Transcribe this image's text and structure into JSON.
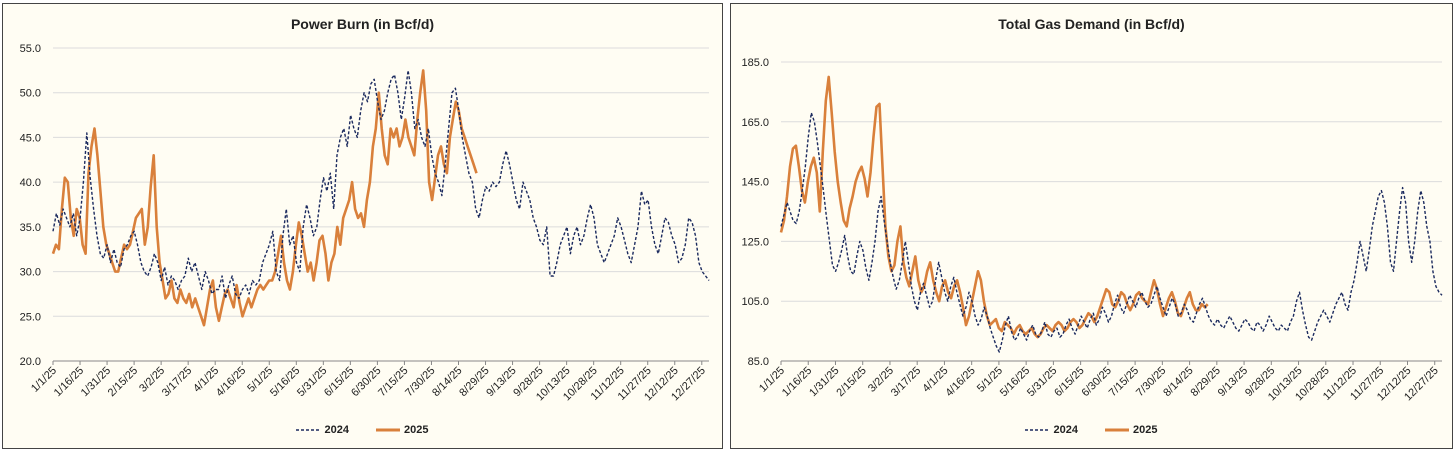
{
  "colors": {
    "s2024": "#1b2a5e",
    "s2025": "#d9803b",
    "grid": "#dcdcdc",
    "bg": "#fffdf3"
  },
  "chart_data": [
    {
      "type": "line",
      "title": "Power Burn (in Bcf/d)",
      "ylim": [
        20,
        55
      ],
      "yticks": [
        "20.0",
        "25.0",
        "30.0",
        "35.0",
        "40.0",
        "45.0",
        "50.0",
        "55.0"
      ],
      "xlabels": [
        "1/1/25",
        "1/16/25",
        "1/31/25",
        "2/15/25",
        "3/2/25",
        "3/17/25",
        "4/1/25",
        "4/16/25",
        "5/1/25",
        "5/16/25",
        "5/31/25",
        "6/15/25",
        "6/30/25",
        "7/15/25",
        "7/30/25",
        "8/14/25",
        "8/29/25",
        "9/13/25",
        "9/28/25",
        "10/13/25",
        "10/28/25",
        "11/12/25",
        "11/27/25",
        "12/12/25",
        "12/27/25"
      ],
      "series": [
        {
          "name": "2024",
          "values": [
            34.5,
            36.5,
            35.2,
            37,
            36,
            35,
            36.5,
            34,
            36,
            40,
            45.5,
            40.5,
            37,
            34,
            32,
            31.5,
            33,
            31,
            32.5,
            31,
            30.5,
            32.5,
            33,
            34,
            34.5,
            33,
            31,
            30,
            29.5,
            30.5,
            32,
            31,
            29,
            30.5,
            28.5,
            29.5,
            29,
            28,
            29,
            29.5,
            31.5,
            30,
            31,
            29.5,
            28,
            30,
            29,
            27.5,
            28,
            28,
            29.5,
            27,
            28.5,
            29.5,
            27.5,
            27,
            28,
            28.5,
            27.5,
            29,
            28.5,
            29,
            31,
            32,
            33,
            34.5,
            30,
            29,
            34,
            37,
            33,
            34,
            31,
            30,
            35,
            37.5,
            36,
            34,
            35,
            38,
            40.5,
            39,
            41,
            37,
            43,
            45,
            46,
            44,
            47.5,
            46,
            45,
            48,
            50,
            49,
            51,
            51.5,
            49,
            47,
            48,
            50,
            51.5,
            52,
            50,
            47,
            49.5,
            52.5,
            50,
            46,
            47,
            45,
            44,
            46,
            43,
            41,
            40,
            38.5,
            42,
            46,
            50,
            50.5,
            48,
            45,
            43,
            41,
            40,
            37,
            36,
            38,
            39.5,
            39,
            40,
            39.5,
            40,
            42,
            43.5,
            42,
            40,
            38,
            37,
            40,
            39,
            38,
            36,
            35,
            33.5,
            33,
            35,
            29.5,
            29.5,
            31,
            33,
            34,
            35,
            32,
            34,
            35,
            33,
            34,
            36,
            37.5,
            36,
            33,
            32,
            31,
            32,
            33,
            34,
            36,
            35,
            33.5,
            32,
            31,
            33,
            35,
            39,
            37.5,
            38,
            35,
            33,
            32,
            34,
            36,
            35.5,
            34,
            33,
            31,
            31.5,
            33,
            36,
            35.5,
            34,
            31,
            30,
            29.5,
            29
          ]
        },
        {
          "name": "2025",
          "values": [
            32,
            33,
            32.5,
            37,
            40.5,
            40,
            36,
            34,
            37,
            36,
            33,
            32,
            41,
            44,
            46,
            43,
            39,
            35,
            33,
            32,
            31,
            30,
            30,
            31.5,
            33,
            32.5,
            33,
            34.5,
            36,
            36.5,
            37,
            33,
            35,
            39.5,
            43,
            35,
            31,
            29,
            27,
            27.5,
            29,
            27,
            26.5,
            28,
            27,
            26.5,
            27.5,
            26,
            27,
            26,
            25,
            24,
            26,
            28,
            29,
            26,
            24.5,
            26,
            27.5,
            28,
            27,
            26,
            28.5,
            26.5,
            25,
            26,
            27,
            26,
            27,
            28,
            28.5,
            28,
            28.5,
            29,
            29,
            30,
            32,
            34,
            31,
            29,
            28,
            30,
            33,
            35.5,
            34,
            32,
            30,
            31,
            29,
            31,
            33.5,
            34,
            32,
            29,
            31,
            32,
            35,
            33,
            36,
            37,
            38,
            40,
            37,
            36,
            36.5,
            35,
            38,
            40,
            44,
            46,
            50,
            46,
            43,
            42,
            46,
            45,
            46,
            44,
            45,
            47,
            45,
            44,
            43,
            47,
            50,
            52.5,
            48,
            40,
            38,
            40.5,
            43,
            44,
            42,
            41,
            45,
            47,
            49,
            48,
            46,
            45,
            44,
            43,
            42,
            41
          ]
        }
      ]
    },
    {
      "type": "line",
      "title": "Total Gas Demand (in Bcf/d)",
      "ylim": [
        85,
        185
      ],
      "yticks": [
        "85.0",
        "105.0",
        "125.0",
        "145.0",
        "165.0",
        "185.0"
      ],
      "xlabels": [
        "1/1/25",
        "1/16/25",
        "1/31/25",
        "2/15/25",
        "3/2/25",
        "3/17/25",
        "4/1/25",
        "4/16/25",
        "5/1/25",
        "5/16/25",
        "5/31/25",
        "6/15/25",
        "6/30/25",
        "7/15/25",
        "7/30/25",
        "8/14/25",
        "8/29/25",
        "9/13/25",
        "9/28/25",
        "10/13/25",
        "10/28/25",
        "11/12/25",
        "11/27/25",
        "12/12/25",
        "12/27/25"
      ],
      "series": [
        {
          "name": "2024",
          "values": [
            130,
            134,
            138,
            135,
            132,
            131,
            135,
            142,
            150,
            160,
            168,
            165,
            158,
            150,
            142,
            133,
            125,
            117,
            115,
            118,
            122,
            127,
            120,
            115,
            114,
            120,
            125,
            122,
            116,
            112,
            118,
            125,
            135,
            140,
            132,
            125,
            118,
            113,
            109,
            112,
            118,
            125,
            118,
            110,
            105,
            102,
            108,
            111,
            107,
            103,
            105,
            112,
            118,
            113,
            108,
            105,
            110,
            113,
            108,
            104,
            100,
            103,
            108,
            105,
            100,
            97,
            99,
            103,
            100,
            96,
            93,
            90,
            88,
            92,
            97,
            100,
            95,
            92,
            93,
            96,
            94,
            92,
            95,
            97,
            94,
            93,
            95,
            98,
            94,
            93,
            95,
            96,
            93,
            94,
            97,
            99,
            96,
            94,
            97,
            100,
            98,
            96,
            99,
            101,
            97,
            99,
            103,
            101,
            98,
            100,
            104,
            107,
            103,
            101,
            104,
            107,
            105,
            103,
            106,
            108,
            105,
            103,
            104,
            107,
            110,
            106,
            103,
            100,
            103,
            106,
            104,
            100,
            101,
            104,
            102,
            99,
            98,
            101,
            104,
            106,
            103,
            100,
            98,
            97,
            99,
            97,
            96,
            98,
            100,
            98,
            96,
            95,
            97,
            99,
            98,
            96,
            95,
            98,
            97,
            95,
            97,
            100,
            98,
            96,
            95,
            97,
            96,
            95,
            98,
            100,
            105,
            108,
            102,
            97,
            93,
            92,
            95,
            98,
            100,
            102,
            100,
            98,
            101,
            104,
            106,
            108,
            104,
            102,
            108,
            112,
            118,
            125,
            120,
            115,
            122,
            130,
            135,
            140,
            142,
            138,
            130,
            118,
            115,
            125,
            135,
            143,
            138,
            125,
            118,
            125,
            135,
            142,
            138,
            130,
            125,
            115,
            110,
            108,
            107
          ]
        },
        {
          "name": "2025",
          "values": [
            128,
            132,
            140,
            150,
            156,
            157,
            150,
            142,
            138,
            145,
            150,
            153,
            148,
            135,
            155,
            172,
            180,
            168,
            155,
            145,
            138,
            132,
            130,
            136,
            140,
            145,
            148,
            150,
            146,
            140,
            148,
            160,
            170,
            171,
            150,
            130,
            120,
            115,
            117,
            125,
            130,
            118,
            113,
            110,
            115,
            120,
            112,
            108,
            110,
            115,
            118,
            112,
            108,
            105,
            110,
            112,
            108,
            106,
            110,
            112,
            108,
            103,
            97,
            100,
            105,
            110,
            115,
            112,
            105,
            100,
            97,
            98,
            99,
            96,
            95,
            98,
            97,
            96,
            94,
            96,
            97,
            95,
            94,
            95,
            96,
            94,
            93,
            94,
            96,
            97,
            96,
            95,
            97,
            98,
            97,
            95,
            96,
            98,
            99,
            98,
            96,
            97,
            99,
            101,
            100,
            98,
            100,
            103,
            106,
            109,
            108,
            104,
            103,
            105,
            108,
            107,
            104,
            102,
            104,
            107,
            108,
            106,
            105,
            104,
            108,
            112,
            109,
            104,
            100,
            103,
            106,
            108,
            105,
            101,
            100,
            103,
            106,
            108,
            104,
            102,
            102,
            104,
            103,
            104
          ]
        }
      ]
    }
  ]
}
